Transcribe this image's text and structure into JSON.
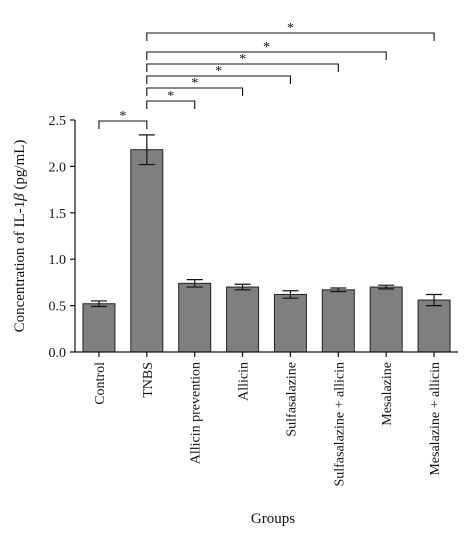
{
  "chart_data": {
    "type": "bar",
    "xlabel": "Groups",
    "ylabel_parts": [
      "Concentration of IL-1",
      "β",
      " (pg/mL)"
    ],
    "categories": [
      "Control",
      "TNBS",
      "Allicin prevention",
      "Allicin",
      "Sulfasalazine",
      "Sulfasalazine + allicin",
      "Mesalazine",
      "Mesalazine + allicin"
    ],
    "values": [
      0.52,
      2.18,
      0.74,
      0.7,
      0.62,
      0.67,
      0.7,
      0.56
    ],
    "errors": [
      0.03,
      0.16,
      0.04,
      0.03,
      0.04,
      0.02,
      0.02,
      0.06
    ],
    "ylim": [
      0,
      2.5
    ],
    "yticks": [
      0.0,
      0.5,
      1.0,
      1.5,
      2.0,
      2.5
    ],
    "ytick_labels": [
      "0.0",
      "0.5",
      "1.0",
      "1.5",
      "2.0",
      "2.5"
    ],
    "bar_color": "#7f7f7f",
    "significance": [
      {
        "from": 0,
        "to": 1,
        "label": "*"
      },
      {
        "from": 1,
        "to": 2,
        "label": "*"
      },
      {
        "from": 1,
        "to": 3,
        "label": "*"
      },
      {
        "from": 1,
        "to": 4,
        "label": "*"
      },
      {
        "from": 1,
        "to": 5,
        "label": "*"
      },
      {
        "from": 1,
        "to": 6,
        "label": "*"
      },
      {
        "from": 1,
        "to": 7,
        "label": "*"
      }
    ]
  }
}
